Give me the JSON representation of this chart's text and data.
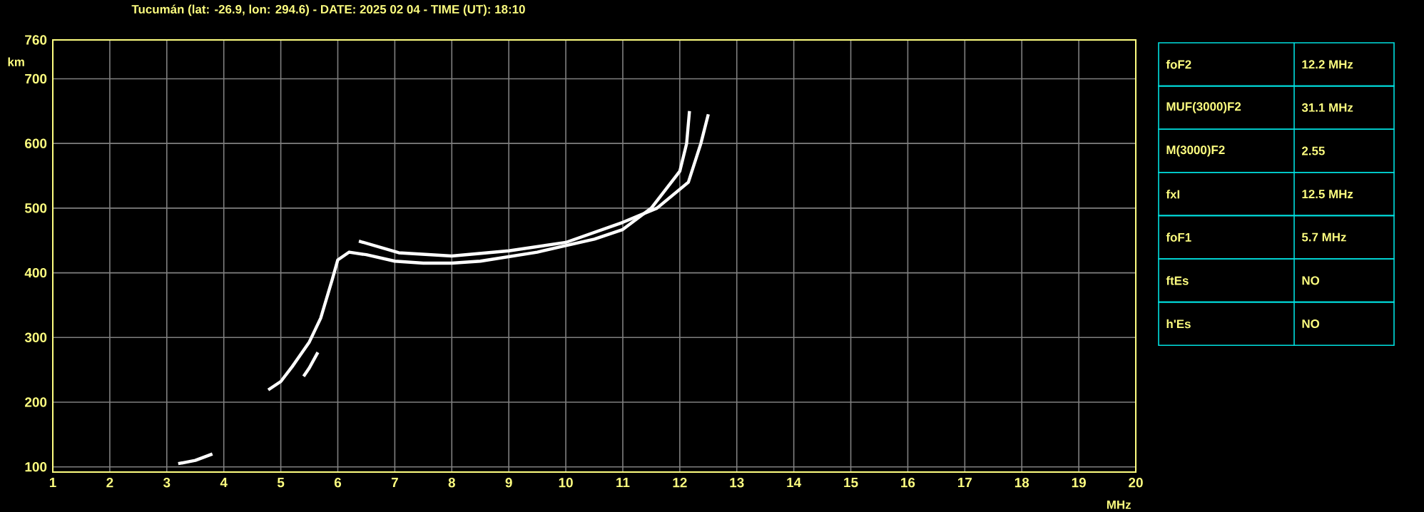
{
  "chart_data": {
    "type": "line",
    "title": "Tucumán (lat: -26.9, lon: 294.6) - DATE: 2025 02 04 - TIME (UT): 18:10",
    "xlabel": "MHz",
    "ylabel": "km",
    "xlim": [
      1,
      20
    ],
    "ylim": [
      92,
      760
    ],
    "xticks": [
      1,
      2,
      3,
      4,
      5,
      6,
      7,
      8,
      9,
      10,
      11,
      12,
      13,
      14,
      15,
      16,
      17,
      18,
      19,
      20
    ],
    "yticks": [
      100,
      200,
      300,
      400,
      500,
      600,
      700,
      760
    ],
    "grid": true,
    "marker": "none",
    "line_style": "solid",
    "series": [
      {
        "color": "#ffffff",
        "x": [
          3.2,
          3.5,
          3.8,
          null,
          4.78,
          5.0,
          5.2,
          5.5,
          5.7,
          5.9,
          6.0,
          6.2,
          6.5,
          7.0,
          7.5,
          8.0,
          8.5,
          9.0,
          9.5,
          10.0,
          10.5,
          11.0,
          11.5,
          12.0,
          12.12,
          12.17
        ],
        "values": [
          105,
          110,
          120,
          null,
          219,
          232,
          255,
          293,
          330,
          389,
          420,
          432,
          428,
          418,
          415,
          415,
          418,
          425,
          432,
          442,
          452,
          467,
          500,
          557,
          600,
          650
        ]
      },
      {
        "color": "#ffffff",
        "x": [
          5.4,
          5.5,
          5.65,
          null,
          6.37,
          7.07,
          8.0,
          9.0,
          10.0,
          11.0,
          11.6,
          12.15,
          12.37,
          12.5
        ],
        "values": [
          240,
          253,
          277,
          null,
          449,
          431,
          426,
          434,
          447,
          478,
          500,
          540,
          600,
          645
        ]
      }
    ],
    "annotations": [
      "foF2",
      "12.2 MHz",
      "MUF(3000)F2",
      "31.1 MHz",
      "M(3000)F2",
      "2.55",
      "fxI",
      "12.5 MHz",
      "foF1",
      "5.7 MHz",
      "ftEs",
      "NO",
      "h'Es",
      "NO"
    ]
  }
}
